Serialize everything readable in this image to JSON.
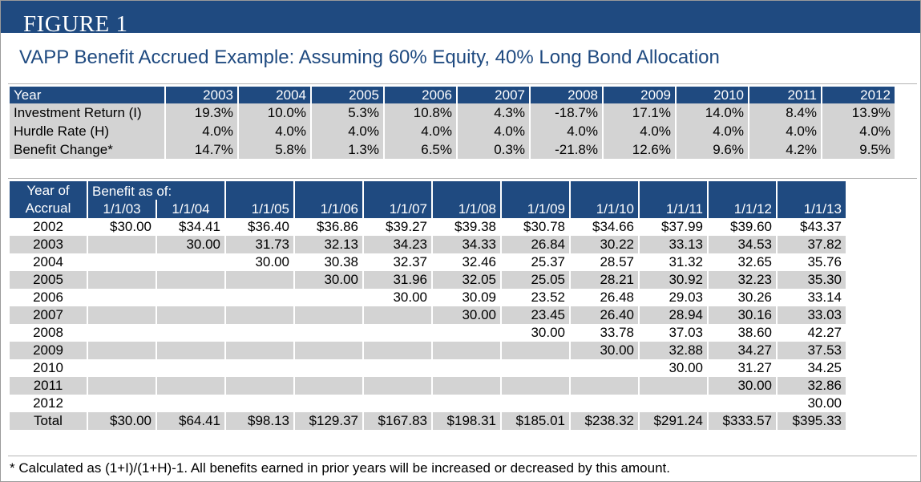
{
  "banner": "FIGURE 1",
  "title": "VAPP Benefit Accrued Example: Assuming 60% Equity, 40% Long Bond Allocation",
  "returns_table": {
    "year_label": "Year",
    "years": [
      "2003",
      "2004",
      "2005",
      "2006",
      "2007",
      "2008",
      "2009",
      "2010",
      "2011",
      "2012"
    ],
    "rows": [
      {
        "label": "Investment Return (I)",
        "values": [
          "19.3%",
          "10.0%",
          "5.3%",
          "10.8%",
          "4.3%",
          "-18.7%",
          "17.1%",
          "14.0%",
          "8.4%",
          "13.9%"
        ]
      },
      {
        "label": "Hurdle Rate (H)",
        "values": [
          "4.0%",
          "4.0%",
          "4.0%",
          "4.0%",
          "4.0%",
          "4.0%",
          "4.0%",
          "4.0%",
          "4.0%",
          "4.0%"
        ]
      },
      {
        "label": "Benefit Change*",
        "values": [
          "14.7%",
          "5.8%",
          "1.3%",
          "6.5%",
          "0.3%",
          "-21.8%",
          "12.6%",
          "9.6%",
          "4.2%",
          "9.5%"
        ]
      }
    ]
  },
  "benefit_table": {
    "year_of_accrual_label": "Year of Accrual",
    "year_of_accrual_line1": "Year of",
    "year_of_accrual_line2": "Accrual",
    "benefit_as_of_label": "Benefit as of:",
    "dates": [
      "1/1/03",
      "1/1/04",
      "1/1/05",
      "1/1/06",
      "1/1/07",
      "1/1/08",
      "1/1/09",
      "1/1/10",
      "1/1/11",
      "1/1/12",
      "1/1/13"
    ],
    "rows": [
      {
        "year": "2002",
        "values": [
          "$30.00",
          "$34.41",
          "$36.40",
          "$36.86",
          "$39.27",
          "$39.38",
          "$30.78",
          "$34.66",
          "$37.99",
          "$39.60",
          "$43.37"
        ]
      },
      {
        "year": "2003",
        "values": [
          "",
          "30.00",
          "31.73",
          "32.13",
          "34.23",
          "34.33",
          "26.84",
          "30.22",
          "33.13",
          "34.53",
          "37.82"
        ]
      },
      {
        "year": "2004",
        "values": [
          "",
          "",
          "30.00",
          "30.38",
          "32.37",
          "32.46",
          "25.37",
          "28.57",
          "31.32",
          "32.65",
          "35.76"
        ]
      },
      {
        "year": "2005",
        "values": [
          "",
          "",
          "",
          "30.00",
          "31.96",
          "32.05",
          "25.05",
          "28.21",
          "30.92",
          "32.23",
          "35.30"
        ]
      },
      {
        "year": "2006",
        "values": [
          "",
          "",
          "",
          "",
          "30.00",
          "30.09",
          "23.52",
          "26.48",
          "29.03",
          "30.26",
          "33.14"
        ]
      },
      {
        "year": "2007",
        "values": [
          "",
          "",
          "",
          "",
          "",
          "30.00",
          "23.45",
          "26.40",
          "28.94",
          "30.16",
          "33.03"
        ]
      },
      {
        "year": "2008",
        "values": [
          "",
          "",
          "",
          "",
          "",
          "",
          "30.00",
          "33.78",
          "37.03",
          "38.60",
          "42.27"
        ]
      },
      {
        "year": "2009",
        "values": [
          "",
          "",
          "",
          "",
          "",
          "",
          "",
          "30.00",
          "32.88",
          "34.27",
          "37.53"
        ]
      },
      {
        "year": "2010",
        "values": [
          "",
          "",
          "",
          "",
          "",
          "",
          "",
          "",
          "30.00",
          "31.27",
          "34.25"
        ]
      },
      {
        "year": "2011",
        "values": [
          "",
          "",
          "",
          "",
          "",
          "",
          "",
          "",
          "",
          "30.00",
          "32.86"
        ]
      },
      {
        "year": "2012",
        "values": [
          "",
          "",
          "",
          "",
          "",
          "",
          "",
          "",
          "",
          "",
          "30.00"
        ]
      }
    ],
    "total": {
      "label": "Total",
      "values": [
        "$30.00",
        "$64.41",
        "$98.13",
        "$129.37",
        "$167.83",
        "$198.31",
        "$185.01",
        "$238.32",
        "$291.24",
        "$333.57",
        "$395.33"
      ]
    }
  },
  "footnote": "* Calculated as (1+I)/(1+H)-1. All benefits earned in prior years will be increased or decreased by this amount."
}
